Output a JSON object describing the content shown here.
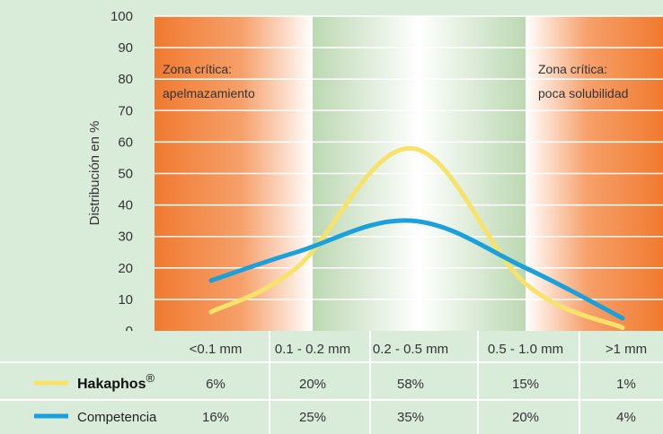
{
  "chart_data": {
    "type": "line",
    "ylabel": "Distribución en %",
    "ylim": [
      0,
      100
    ],
    "yticks": [
      0,
      10,
      20,
      30,
      40,
      50,
      60,
      70,
      80,
      90,
      100
    ],
    "categories": [
      "<0.1 mm",
      "0.1 - 0.2 mm",
      "0.2 - 0.5 mm",
      "0.5 - 1.0 mm",
      ">1 mm"
    ],
    "series": [
      {
        "name": "Hakaphos",
        "name_superscript": "®",
        "color": "#f7e36a",
        "values": [
          6,
          20,
          58,
          15,
          1
        ],
        "value_labels": [
          "6%",
          "20%",
          "58%",
          "15%",
          "1%"
        ]
      },
      {
        "name": "Competencia",
        "color": "#1aa0db",
        "values": [
          16,
          25,
          35,
          20,
          4
        ],
        "value_labels": [
          "16%",
          "25%",
          "35%",
          "20%",
          "4%"
        ]
      }
    ],
    "annotations": [
      {
        "lines": [
          "Zona crítica:",
          "apelmazamiento"
        ],
        "zone": "left",
        "color": "#f07a30"
      },
      {
        "lines": [
          "Zona crítica:",
          "poca solubilidad"
        ],
        "zone": "right",
        "color": "#f07a30"
      }
    ],
    "middle_zone_color": "#bcd8b2",
    "grid": true,
    "legend": "table below chart"
  }
}
